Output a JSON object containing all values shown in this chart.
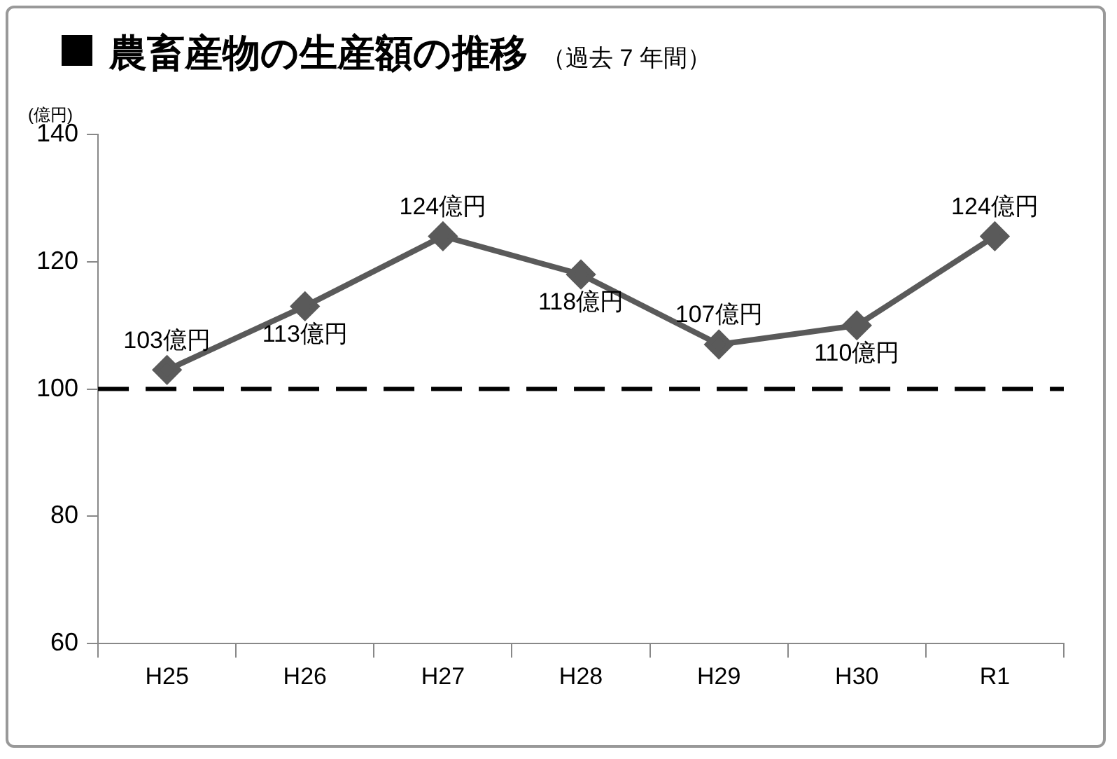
{
  "chart_data": {
    "type": "line",
    "title": "農畜産物の生産額の推移",
    "subtitle": "（過去 7 年間）",
    "ylabel": "(億円)",
    "categories": [
      "H25",
      "H26",
      "H27",
      "H28",
      "H29",
      "H30",
      "R1"
    ],
    "series": [
      {
        "color": "#5a5a5a",
        "values": [
          103,
          113,
          124,
          118,
          107,
          110,
          124
        ],
        "value_labels": [
          "103億円",
          "113億円",
          "124億円",
          "118億円",
          "107億円",
          "110億円",
          "124億円"
        ]
      }
    ],
    "ylim": [
      60,
      140
    ],
    "yticks": [
      60,
      80,
      100,
      120,
      140
    ],
    "grid": false,
    "legend": false,
    "marker": "diamond",
    "line_style": "solid",
    "ref_lines": [
      {
        "axis": "y",
        "value": 100,
        "color": "#000000",
        "line_style": "dashed"
      }
    ]
  }
}
